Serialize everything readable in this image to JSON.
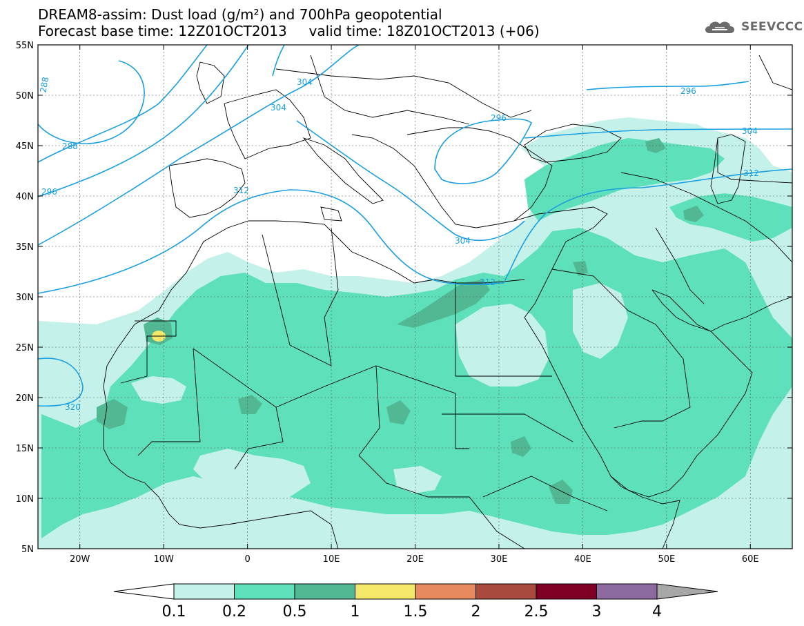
{
  "title": {
    "line1": "DREAM8-assim: Dust load (g/m²) and 700hPa geopotential",
    "line2": "Forecast base time: 12Z01OCT2013     valid time: 18Z01OCT2013 (+06)"
  },
  "logo": {
    "text": "SEEVCCC",
    "icon": "cloud-icon"
  },
  "map": {
    "lon_range": [
      -25,
      65
    ],
    "lat_range": [
      5,
      55
    ],
    "lon_ticks": [
      "20W",
      "10W",
      "0",
      "10E",
      "20E",
      "30E",
      "40E",
      "50E",
      "60E"
    ],
    "lat_ticks": [
      "5N",
      "10N",
      "15N",
      "20N",
      "25N",
      "30N",
      "35N",
      "40N",
      "45N",
      "50N",
      "55N"
    ],
    "contour_color": "#1a9fe0",
    "contour_labels": [
      "288",
      "288",
      "296",
      "304",
      "304",
      "312",
      "320",
      "304",
      "312",
      "296",
      "296",
      "304",
      "312"
    ]
  },
  "colorbar": {
    "bins": [
      "0.1",
      "0.2",
      "0.5",
      "1",
      "1.5",
      "2",
      "2.5",
      "3",
      "4"
    ],
    "colors": [
      "#ffffff",
      "#c4f1ea",
      "#5ee0ba",
      "#52b894",
      "#f4e86b",
      "#e88a5f",
      "#a84a3e",
      "#7d0024",
      "#8c6aa0",
      "#a8a8a8"
    ]
  }
}
